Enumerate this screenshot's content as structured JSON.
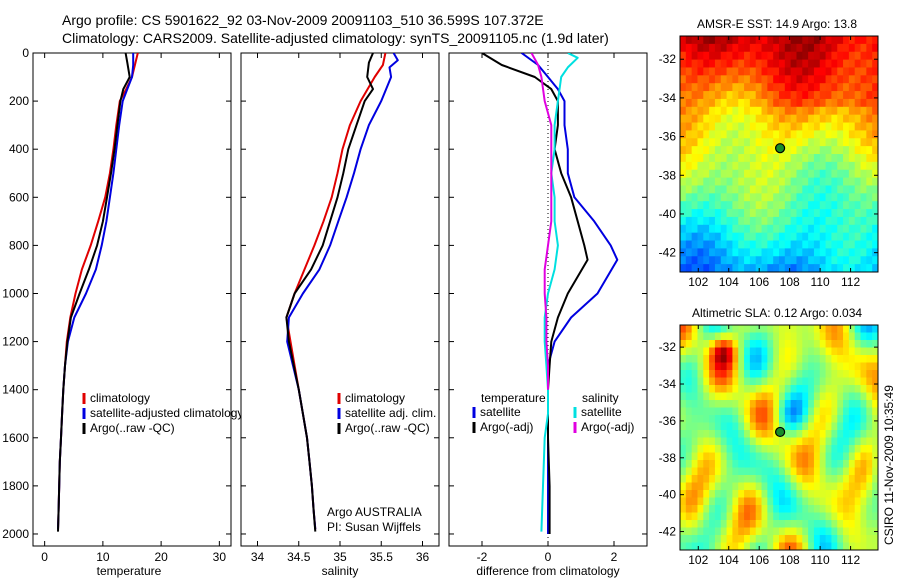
{
  "header": {
    "line1": "Argo profile: CS 5901622_92 03-Nov-2009 20091103_510 36.599S 107.372E",
    "line2": "Climatology: CARS2009. Satellite-adjusted climatology: synTS_20091105.nc (1.9d later)"
  },
  "side_label": "CSIRO 11-Nov-2009 10:35:49",
  "colors": {
    "red": "#e00000",
    "blue": "#0000e0",
    "black": "#000000",
    "cyan": "#00e0e0",
    "magenta": "#e000e0"
  },
  "chart_data": [
    {
      "type": "line",
      "id": "temperature",
      "xlabel": "temperature",
      "xlim": [
        -2,
        32
      ],
      "ylim": [
        0,
        2050
      ],
      "xticks": [
        0,
        10,
        20,
        30
      ],
      "yticks": [
        0,
        200,
        400,
        600,
        800,
        1000,
        1200,
        1400,
        1600,
        1800,
        2000
      ],
      "legend": [
        "climatology",
        "satellite-adjusted climatology",
        "Argo(..raw -QC)"
      ],
      "series": [
        {
          "name": "climatology",
          "color": "red",
          "points": [
            [
              16.0,
              0
            ],
            [
              15.5,
              50
            ],
            [
              15.0,
              100
            ],
            [
              14.0,
              150
            ],
            [
              12.9,
              200
            ],
            [
              12.3,
              300
            ],
            [
              11.8,
              400
            ],
            [
              11.2,
              500
            ],
            [
              10.4,
              600
            ],
            [
              9.2,
              700
            ],
            [
              7.9,
              800
            ],
            [
              6.4,
              900
            ],
            [
              5.3,
              1000
            ],
            [
              4.4,
              1100
            ],
            [
              3.8,
              1200
            ],
            [
              3.5,
              1300
            ],
            [
              3.2,
              1400
            ],
            [
              3.0,
              1500
            ],
            [
              2.8,
              1600
            ],
            [
              2.6,
              1700
            ],
            [
              2.5,
              1800
            ],
            [
              2.4,
              1900
            ],
            [
              2.3,
              1980
            ]
          ]
        },
        {
          "name": "satellite-adjusted climatology",
          "color": "blue",
          "points": [
            [
              15.2,
              0
            ],
            [
              15.2,
              50
            ],
            [
              15.0,
              100
            ],
            [
              14.2,
              150
            ],
            [
              13.4,
              200
            ],
            [
              12.8,
              300
            ],
            [
              12.3,
              400
            ],
            [
              11.8,
              500
            ],
            [
              11.2,
              600
            ],
            [
              10.6,
              700
            ],
            [
              9.8,
              800
            ],
            [
              8.8,
              900
            ],
            [
              7.1,
              1000
            ],
            [
              5.1,
              1100
            ],
            [
              4.0,
              1200
            ],
            [
              3.5,
              1300
            ],
            [
              3.2,
              1400
            ],
            [
              3.0,
              1500
            ],
            [
              2.8,
              1600
            ],
            [
              2.6,
              1700
            ],
            [
              2.5,
              1800
            ],
            [
              2.4,
              1900
            ],
            [
              2.3,
              1980
            ]
          ]
        },
        {
          "name": "Argo(..raw -QC)",
          "color": "black",
          "points": [
            [
              13.9,
              0
            ],
            [
              14.2,
              40
            ],
            [
              14.6,
              100
            ],
            [
              13.5,
              150
            ],
            [
              13.0,
              200
            ],
            [
              12.5,
              300
            ],
            [
              12.0,
              400
            ],
            [
              11.4,
              500
            ],
            [
              10.7,
              600
            ],
            [
              10.0,
              700
            ],
            [
              9.0,
              800
            ],
            [
              7.6,
              900
            ],
            [
              6.0,
              1000
            ],
            [
              4.5,
              1100
            ],
            [
              3.9,
              1200
            ],
            [
              3.5,
              1300
            ],
            [
              3.2,
              1400
            ],
            [
              3.0,
              1500
            ],
            [
              2.8,
              1600
            ],
            [
              2.6,
              1700
            ],
            [
              2.5,
              1800
            ],
            [
              2.4,
              1900
            ],
            [
              2.3,
              1990
            ]
          ]
        }
      ]
    },
    {
      "type": "line",
      "id": "salinity",
      "xlabel": "salinity",
      "xlim": [
        33.8,
        36.2
      ],
      "ylim": [
        0,
        2050
      ],
      "xticks": [
        34,
        34.5,
        35,
        35.5,
        36
      ],
      "yticks": [
        0,
        200,
        400,
        600,
        800,
        1000,
        1200,
        1400,
        1600,
        1800,
        2000
      ],
      "legend": [
        "climatology",
        "satellite adj. clim.",
        "Argo(..raw -QC)"
      ],
      "credit": [
        "Argo AUSTRALIA",
        "PI: Susan Wijffels"
      ],
      "series": [
        {
          "name": "climatology",
          "color": "red",
          "points": [
            [
              35.55,
              0
            ],
            [
              35.52,
              50
            ],
            [
              35.42,
              100
            ],
            [
              35.25,
              200
            ],
            [
              35.12,
              300
            ],
            [
              35.03,
              400
            ],
            [
              34.97,
              500
            ],
            [
              34.9,
              600
            ],
            [
              34.8,
              700
            ],
            [
              34.69,
              800
            ],
            [
              34.57,
              900
            ],
            [
              34.45,
              1000
            ],
            [
              34.35,
              1100
            ],
            [
              34.4,
              1200
            ],
            [
              34.45,
              1300
            ],
            [
              34.5,
              1400
            ],
            [
              34.55,
              1500
            ],
            [
              34.6,
              1600
            ],
            [
              34.63,
              1700
            ],
            [
              34.66,
              1800
            ],
            [
              34.68,
              1900
            ],
            [
              34.7,
              1980
            ]
          ]
        },
        {
          "name": "satellite adj. clim.",
          "color": "blue",
          "points": [
            [
              35.65,
              0
            ],
            [
              35.7,
              30
            ],
            [
              35.6,
              60
            ],
            [
              35.62,
              100
            ],
            [
              35.5,
              200
            ],
            [
              35.35,
              300
            ],
            [
              35.25,
              400
            ],
            [
              35.17,
              500
            ],
            [
              35.08,
              600
            ],
            [
              34.98,
              700
            ],
            [
              34.88,
              800
            ],
            [
              34.75,
              900
            ],
            [
              34.55,
              1000
            ],
            [
              34.38,
              1100
            ],
            [
              34.36,
              1200
            ],
            [
              34.43,
              1300
            ],
            [
              34.5,
              1400
            ],
            [
              34.55,
              1500
            ],
            [
              34.6,
              1600
            ],
            [
              34.63,
              1700
            ],
            [
              34.66,
              1800
            ],
            [
              34.68,
              1900
            ],
            [
              34.7,
              1980
            ]
          ]
        },
        {
          "name": "Argo(..raw -QC)",
          "color": "black",
          "points": [
            [
              35.4,
              0
            ],
            [
              35.35,
              40
            ],
            [
              35.33,
              100
            ],
            [
              35.4,
              150
            ],
            [
              35.3,
              200
            ],
            [
              35.2,
              300
            ],
            [
              35.1,
              400
            ],
            [
              35.04,
              500
            ],
            [
              34.97,
              600
            ],
            [
              34.88,
              700
            ],
            [
              34.79,
              800
            ],
            [
              34.65,
              900
            ],
            [
              34.45,
              1000
            ],
            [
              34.35,
              1100
            ],
            [
              34.38,
              1200
            ],
            [
              34.44,
              1300
            ],
            [
              34.5,
              1400
            ],
            [
              34.55,
              1500
            ],
            [
              34.6,
              1600
            ],
            [
              34.63,
              1700
            ],
            [
              34.66,
              1800
            ],
            [
              34.68,
              1900
            ],
            [
              34.7,
              1990
            ]
          ]
        }
      ]
    },
    {
      "type": "line",
      "id": "difference",
      "xlabel": "difference from climatology",
      "xlim": [
        -3,
        3
      ],
      "ylim": [
        0,
        2050
      ],
      "xticks": [
        -2,
        0,
        2
      ],
      "yticks": [
        0,
        200,
        400,
        600,
        800,
        1000,
        1200,
        1400,
        1600,
        1800,
        2000
      ],
      "zero_line": true,
      "legend_left": {
        "title": "temperature",
        "items": [
          "satellite",
          "Argo(-adj)"
        ]
      },
      "legend_right": {
        "title": "salinity",
        "items": [
          "satellite",
          "Argo(-adj)"
        ]
      },
      "series": [
        {
          "name": "temperature satellite",
          "color": "blue",
          "points": [
            [
              -0.8,
              0
            ],
            [
              -0.3,
              50
            ],
            [
              0.0,
              100
            ],
            [
              0.3,
              150
            ],
            [
              0.5,
              200
            ],
            [
              0.5,
              300
            ],
            [
              0.6,
              400
            ],
            [
              0.6,
              500
            ],
            [
              0.8,
              600
            ],
            [
              1.4,
              700
            ],
            [
              1.9,
              800
            ],
            [
              2.1,
              860
            ],
            [
              1.5,
              1000
            ],
            [
              0.7,
              1100
            ],
            [
              0.2,
              1200
            ],
            [
              0.0,
              1300
            ],
            [
              0.0,
              1400
            ],
            [
              0.0,
              1500
            ],
            [
              0.0,
              1600
            ],
            [
              0.0,
              1800
            ],
            [
              0.0,
              2000
            ]
          ]
        },
        {
          "name": "temperature Argo(-adj)",
          "color": "black",
          "points": [
            [
              -2.0,
              0
            ],
            [
              -1.4,
              50
            ],
            [
              -0.4,
              100
            ],
            [
              0.1,
              150
            ],
            [
              0.3,
              200
            ],
            [
              0.3,
              300
            ],
            [
              0.2,
              400
            ],
            [
              0.4,
              500
            ],
            [
              0.7,
              600
            ],
            [
              0.9,
              700
            ],
            [
              1.1,
              800
            ],
            [
              1.2,
              860
            ],
            [
              0.6,
              1000
            ],
            [
              0.3,
              1100
            ],
            [
              0.1,
              1200
            ],
            [
              0.05,
              1300
            ],
            [
              0.0,
              1400
            ],
            [
              0.0,
              1600
            ],
            [
              0.05,
              1800
            ],
            [
              0.05,
              2000
            ]
          ]
        },
        {
          "name": "salinity satellite",
          "color": "cyan",
          "points": [
            [
              0.6,
              0
            ],
            [
              0.9,
              20
            ],
            [
              0.6,
              60
            ],
            [
              0.4,
              100
            ],
            [
              0.3,
              200
            ],
            [
              0.2,
              300
            ],
            [
              0.2,
              400
            ],
            [
              0.1,
              500
            ],
            [
              0.2,
              600
            ],
            [
              0.2,
              700
            ],
            [
              0.3,
              800
            ],
            [
              0.2,
              900
            ],
            [
              0.0,
              1000
            ],
            [
              -0.1,
              1100
            ],
            [
              -0.1,
              1200
            ],
            [
              -0.05,
              1300
            ],
            [
              0.0,
              1400
            ],
            [
              0.0,
              1500
            ],
            [
              -0.1,
              1600
            ],
            [
              -0.15,
              1800
            ],
            [
              -0.2,
              1990
            ]
          ]
        },
        {
          "name": "salinity Argo(-adj)",
          "color": "magenta",
          "points": [
            [
              -0.5,
              0
            ],
            [
              -0.3,
              50
            ],
            [
              -0.2,
              100
            ],
            [
              -0.1,
              200
            ],
            [
              0.1,
              300
            ],
            [
              0.1,
              400
            ],
            [
              0.1,
              500
            ],
            [
              0.1,
              600
            ],
            [
              0.1,
              700
            ],
            [
              0.0,
              800
            ],
            [
              -0.1,
              900
            ],
            [
              -0.1,
              1000
            ],
            [
              -0.05,
              1100
            ],
            [
              -0.05,
              1200
            ],
            [
              0.0,
              1300
            ],
            [
              0.0,
              1400
            ]
          ]
        }
      ]
    },
    {
      "type": "heatmap",
      "id": "sst_map",
      "title": "AMSR-E SST: 14.9 Argo: 13.8",
      "xlim": [
        100.8,
        113.8
      ],
      "ylim": [
        -43,
        -30.8
      ],
      "xticks": [
        102,
        104,
        106,
        108,
        110,
        112
      ],
      "yticks": [
        -32,
        -34,
        -36,
        -38,
        -40,
        -42
      ],
      "marker": {
        "lon": 107.372,
        "lat": -36.599
      },
      "colormap": "jet"
    },
    {
      "type": "heatmap",
      "id": "sla_map",
      "title": "Altimetric SLA: 0.12 Argo: 0.034",
      "xlim": [
        100.8,
        113.8
      ],
      "ylim": [
        -43,
        -30.8
      ],
      "xticks": [
        102,
        104,
        106,
        108,
        110,
        112
      ],
      "yticks": [
        -32,
        -34,
        -36,
        -38,
        -40,
        -42
      ],
      "marker": {
        "lon": 107.372,
        "lat": -36.599
      },
      "colormap": "jet"
    }
  ]
}
